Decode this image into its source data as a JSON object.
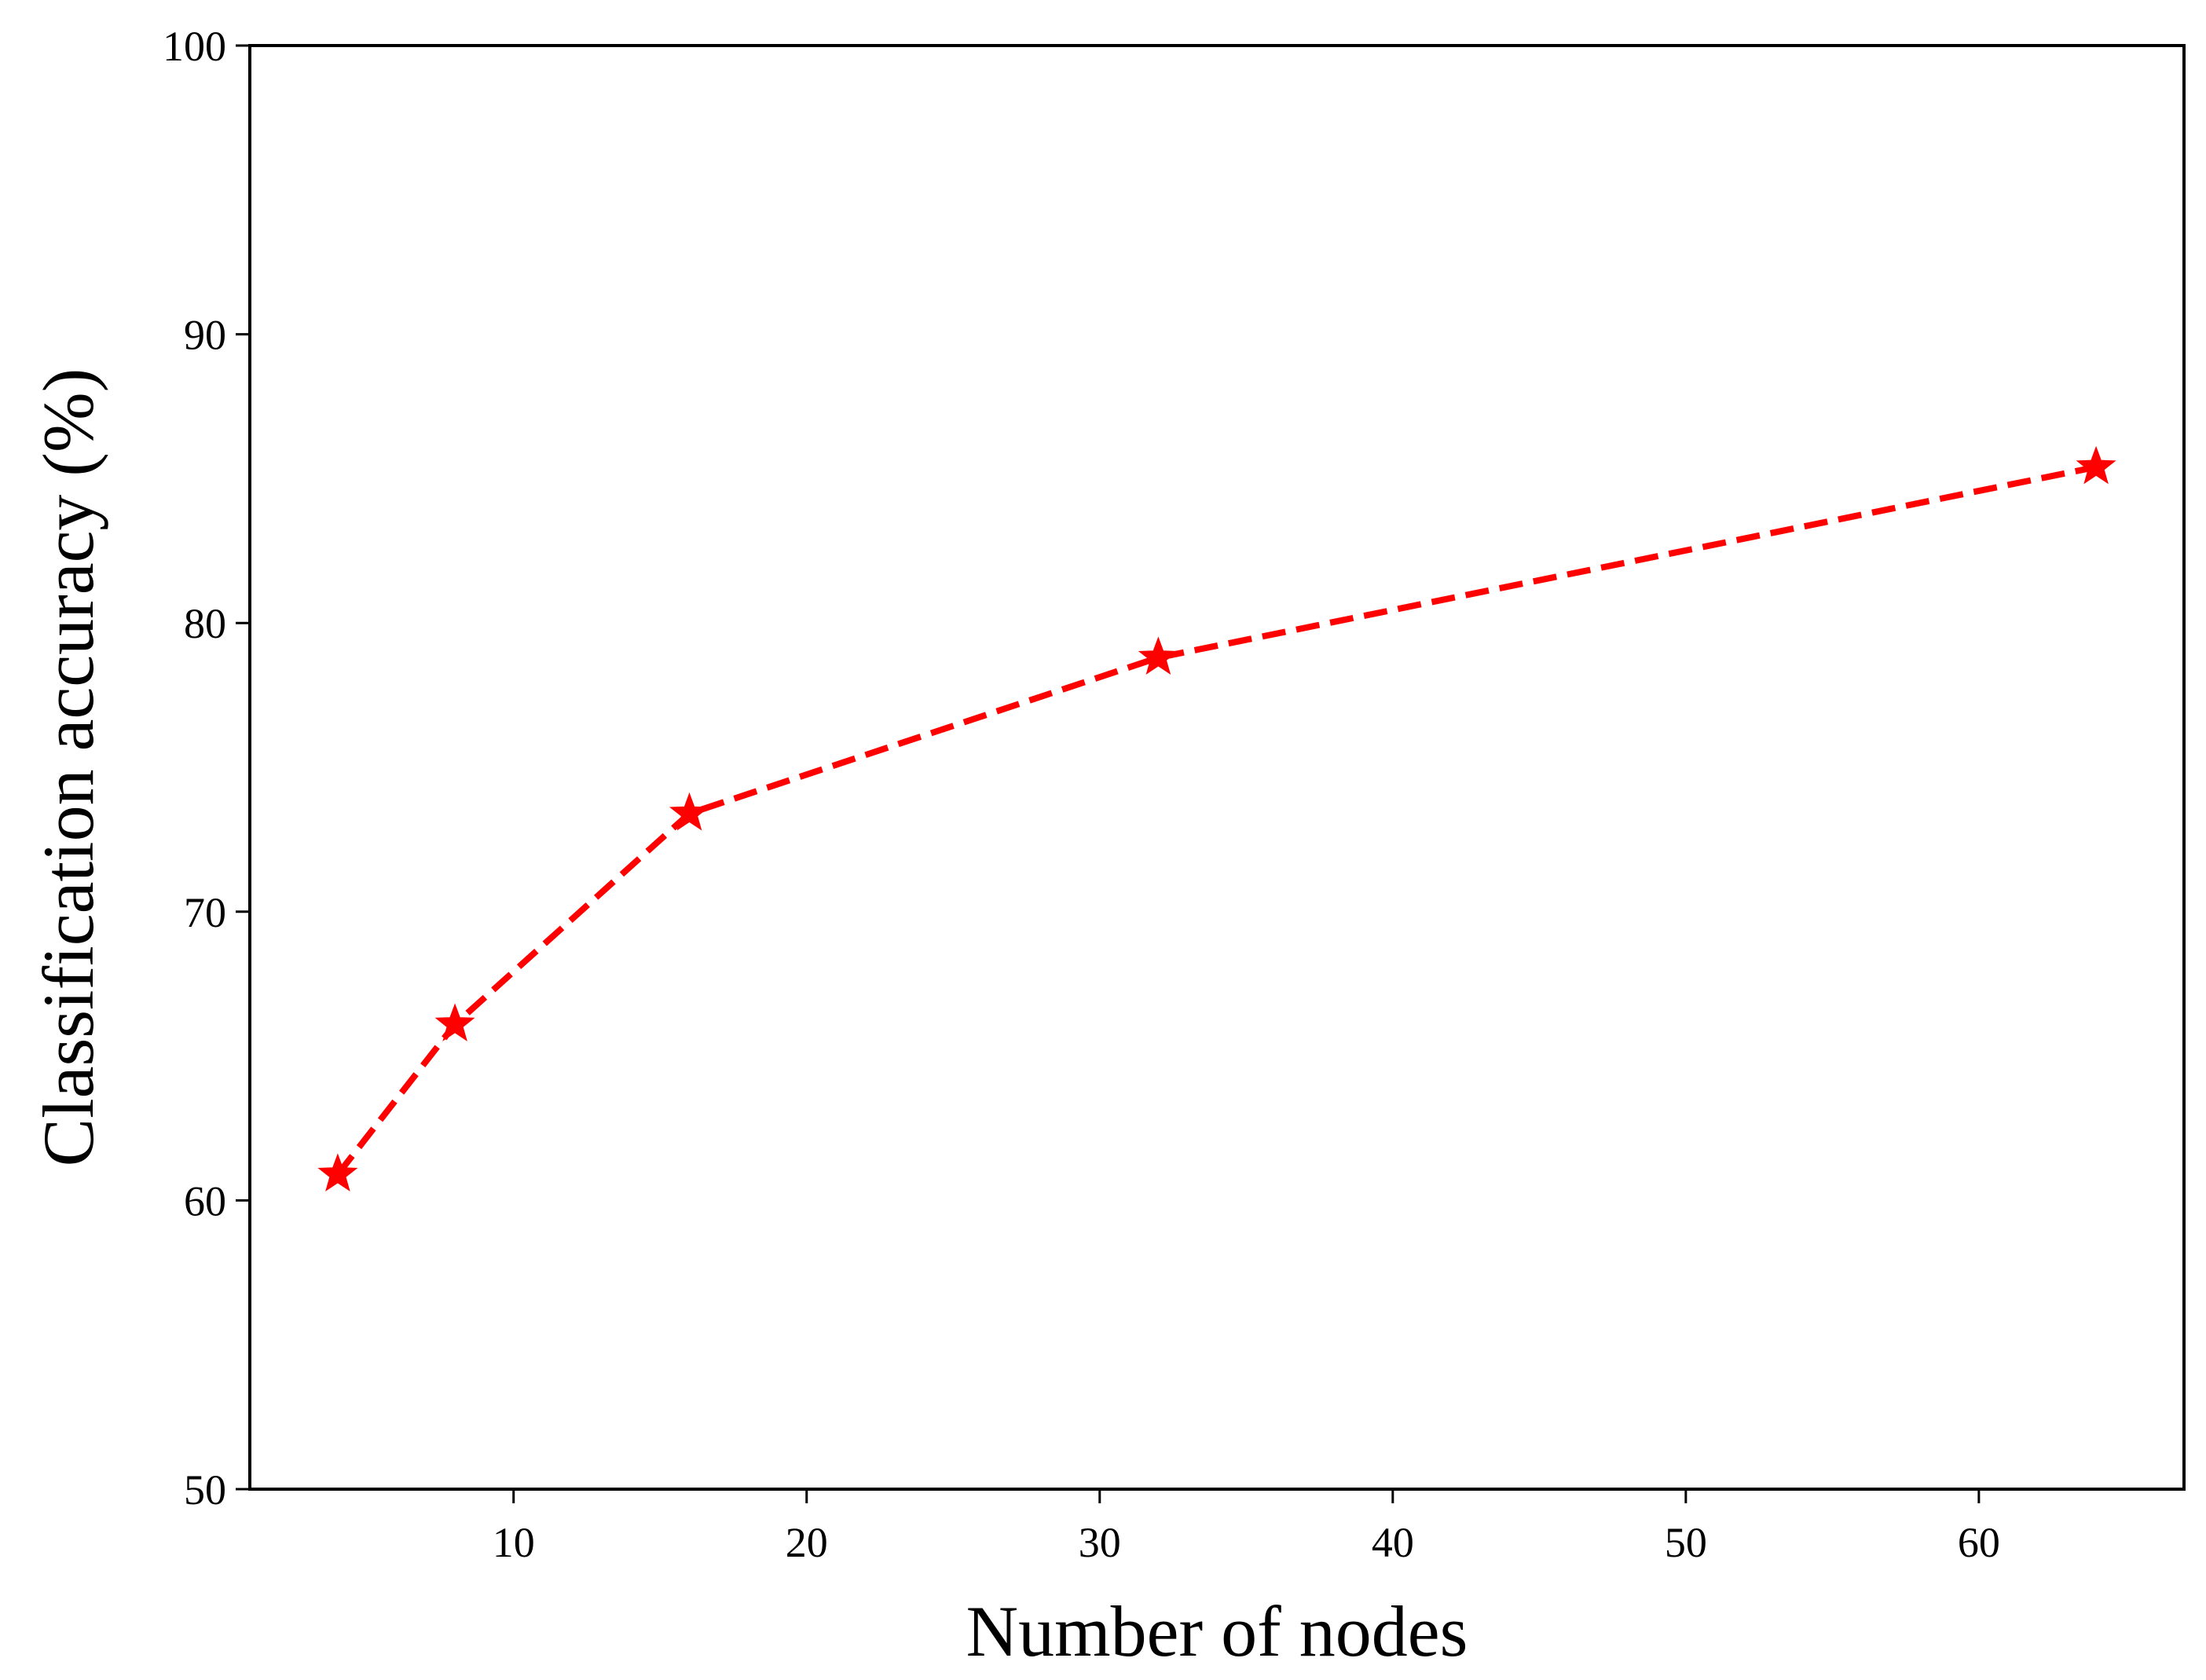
{
  "chart_data": {
    "type": "line",
    "title": "",
    "xlabel": "Number of nodes",
    "ylabel": "Classification accuracy (%)",
    "xlim": [
      1,
      67
    ],
    "ylim": [
      50,
      100
    ],
    "xticks": [
      10,
      20,
      30,
      40,
      50,
      60
    ],
    "yticks": [
      50,
      60,
      70,
      80,
      90,
      100
    ],
    "xtick_labels": [
      "10",
      "20",
      "30",
      "40",
      "50",
      "60"
    ],
    "ytick_labels": [
      "50",
      "60",
      "70",
      "80",
      "90",
      "100"
    ],
    "grid": false,
    "legend": "none",
    "series": [
      {
        "x": [
          4,
          8,
          16,
          32,
          64
        ],
        "y": [
          60.9,
          66.1,
          73.4,
          78.8,
          85.4
        ],
        "color": "#ff0000",
        "line_style": "dashed",
        "marker": "star"
      }
    ]
  }
}
